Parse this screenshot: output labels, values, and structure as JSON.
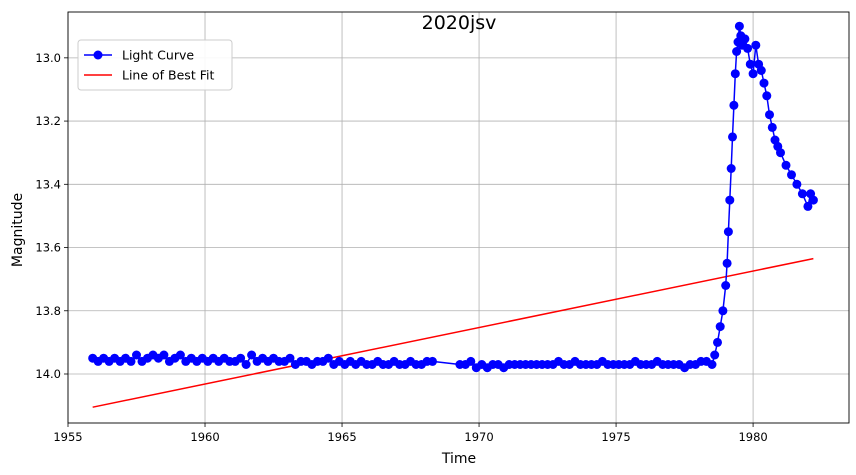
{
  "chart_data": {
    "type": "line",
    "title": "2020jsv",
    "xlabel": "Time",
    "ylabel": "Magnitude",
    "xlim": [
      1955.0,
      1983.5
    ],
    "ylim": [
      14.155,
      12.855
    ],
    "y_inverted": true,
    "grid": true,
    "legend_position": "top-left",
    "x_ticks": [
      1955,
      1960,
      1965,
      1970,
      1975,
      1980
    ],
    "x_tick_labels": [
      "1955",
      "1960",
      "1965",
      "1970",
      "1975",
      "1980"
    ],
    "y_ticks": [
      13.0,
      13.2,
      13.4,
      13.6,
      13.8,
      14.0
    ],
    "y_tick_labels": [
      "13.0",
      "13.2",
      "13.4",
      "13.6",
      "13.8",
      "14.0"
    ],
    "series": [
      {
        "name": "Light Curve",
        "style": "line-with-markers",
        "color": "#0000ff",
        "x": [
          1955.9,
          1956.1,
          1956.3,
          1956.5,
          1956.7,
          1956.9,
          1957.1,
          1957.3,
          1957.5,
          1957.7,
          1957.9,
          1958.1,
          1958.3,
          1958.5,
          1958.7,
          1958.9,
          1959.1,
          1959.3,
          1959.5,
          1959.7,
          1959.9,
          1960.1,
          1960.3,
          1960.5,
          1960.7,
          1960.9,
          1961.1,
          1961.3,
          1961.5,
          1961.7,
          1961.9,
          1962.1,
          1962.3,
          1962.5,
          1962.7,
          1962.9,
          1963.1,
          1963.3,
          1963.5,
          1963.7,
          1963.9,
          1964.1,
          1964.3,
          1964.5,
          1964.7,
          1964.9,
          1965.1,
          1965.3,
          1965.5,
          1965.7,
          1965.9,
          1966.1,
          1966.3,
          1966.5,
          1966.7,
          1966.9,
          1967.1,
          1967.3,
          1967.5,
          1967.7,
          1967.9,
          1968.1,
          1968.3,
          1969.3,
          1969.5,
          1969.7,
          1969.9,
          1970.1,
          1970.3,
          1970.5,
          1970.7,
          1970.9,
          1971.1,
          1971.3,
          1971.5,
          1971.7,
          1971.9,
          1972.1,
          1972.3,
          1972.5,
          1972.7,
          1972.9,
          1973.1,
          1973.3,
          1973.5,
          1973.7,
          1973.9,
          1974.1,
          1974.3,
          1974.5,
          1974.7,
          1974.9,
          1975.1,
          1975.3,
          1975.5,
          1975.7,
          1975.9,
          1976.1,
          1976.3,
          1976.5,
          1976.7,
          1976.9,
          1977.1,
          1977.3,
          1977.5,
          1977.7,
          1977.9,
          1978.1,
          1978.3,
          1978.5,
          1978.6,
          1978.7,
          1978.8,
          1978.9,
          1979.0,
          1979.05,
          1979.1,
          1979.15,
          1979.2,
          1979.25,
          1979.3,
          1979.35,
          1979.4,
          1979.45,
          1979.5,
          1979.55,
          1979.6,
          1979.7,
          1979.8,
          1979.9,
          1980.0,
          1980.1,
          1980.2,
          1980.3,
          1980.4,
          1980.5,
          1980.6,
          1980.7,
          1980.8,
          1980.9,
          1981.0,
          1981.2,
          1981.4,
          1981.6,
          1981.8,
          1982.0,
          1982.1,
          1982.2
        ],
        "y": [
          13.95,
          13.96,
          13.95,
          13.96,
          13.95,
          13.96,
          13.95,
          13.96,
          13.94,
          13.96,
          13.95,
          13.94,
          13.95,
          13.94,
          13.96,
          13.95,
          13.94,
          13.96,
          13.95,
          13.96,
          13.95,
          13.96,
          13.95,
          13.96,
          13.95,
          13.96,
          13.96,
          13.95,
          13.97,
          13.94,
          13.96,
          13.95,
          13.96,
          13.95,
          13.96,
          13.96,
          13.95,
          13.97,
          13.96,
          13.96,
          13.97,
          13.96,
          13.96,
          13.95,
          13.97,
          13.96,
          13.97,
          13.96,
          13.97,
          13.96,
          13.97,
          13.97,
          13.96,
          13.97,
          13.97,
          13.96,
          13.97,
          13.97,
          13.96,
          13.97,
          13.97,
          13.96,
          13.96,
          13.97,
          13.97,
          13.96,
          13.98,
          13.97,
          13.98,
          13.97,
          13.97,
          13.98,
          13.97,
          13.97,
          13.97,
          13.97,
          13.97,
          13.97,
          13.97,
          13.97,
          13.97,
          13.96,
          13.97,
          13.97,
          13.96,
          13.97,
          13.97,
          13.97,
          13.97,
          13.96,
          13.97,
          13.97,
          13.97,
          13.97,
          13.97,
          13.96,
          13.97,
          13.97,
          13.97,
          13.96,
          13.97,
          13.97,
          13.97,
          13.97,
          13.98,
          13.97,
          13.97,
          13.96,
          13.96,
          13.97,
          13.94,
          13.9,
          13.85,
          13.8,
          13.72,
          13.65,
          13.55,
          13.45,
          13.35,
          13.25,
          13.15,
          13.05,
          12.98,
          12.95,
          12.9,
          12.93,
          12.96,
          12.94,
          12.97,
          13.02,
          13.05,
          12.96,
          13.02,
          13.04,
          13.08,
          13.12,
          13.18,
          13.22,
          13.26,
          13.28,
          13.3,
          13.34,
          13.37,
          13.4,
          13.43,
          13.47,
          13.43,
          13.45
        ]
      },
      {
        "name": "Line of Best Fit",
        "style": "line",
        "color": "#ff0000",
        "x": [
          1955.9,
          1982.2
        ],
        "y": [
          14.105,
          13.635
        ]
      }
    ]
  }
}
